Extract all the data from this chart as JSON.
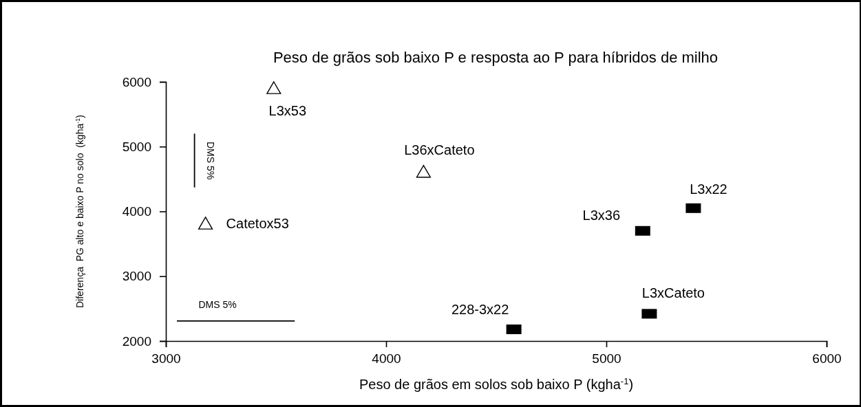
{
  "chart_data": {
    "type": "scatter",
    "title": "Peso de grãos sob baixo P e resposta ao P para híbridos de milho",
    "xlabel": "Peso de grãos em solos sob baixo P (kgha$^{-1}$)",
    "ylabel": "Diferença  PG alto e baixo P no solo  (kgha$^{-1}$)",
    "xlim": [
      3000,
      6000
    ],
    "xticks": [
      3000,
      4000,
      5000,
      6000
    ],
    "ylim": [
      2000,
      6000
    ],
    "yticks": [
      2000,
      3000,
      4000,
      5000,
      6000
    ],
    "grid": false,
    "series": [
      {
        "marker": "triangle",
        "color": "#000000",
        "x": [
          3490,
          4170,
          3180
        ],
        "values": [
          5900,
          4610,
          3810
        ]
      },
      {
        "marker": "square",
        "color": "#000000",
        "x": [
          5395,
          5165,
          5195,
          4580
        ],
        "values": [
          4050,
          3700,
          2420,
          2180
        ]
      },
      {
        "type": "line",
        "color": "#000000",
        "x": [
          3050,
          3585
        ],
        "values": [
          2310,
          2310
        ]
      },
      {
        "type": "line",
        "color": "#000000",
        "x": [
          3130,
          3130
        ],
        "values": [
          5200,
          4370
        ]
      }
    ],
    "annotations": [
      {
        "text": "L3x53",
        "x": 3490,
        "y": 5900
      },
      {
        "text": "L36xCateto",
        "x": 4170,
        "y": 4610
      },
      {
        "text": "Catetox53",
        "x": 3180,
        "y": 3810
      },
      {
        "text": "L3x22",
        "x": 5395,
        "y": 4050
      },
      {
        "text": "L3x36",
        "x": 5165,
        "y": 3700
      },
      {
        "text": "L3xCateto",
        "x": 5195,
        "y": 2420
      },
      {
        "text": "228-3x22",
        "x": 4580,
        "y": 2180
      },
      {
        "text": "DMS 5%",
        "x": 3317,
        "y": 2310
      },
      {
        "text": "DMS 5%",
        "x": 3130,
        "y": 4785
      }
    ]
  }
}
